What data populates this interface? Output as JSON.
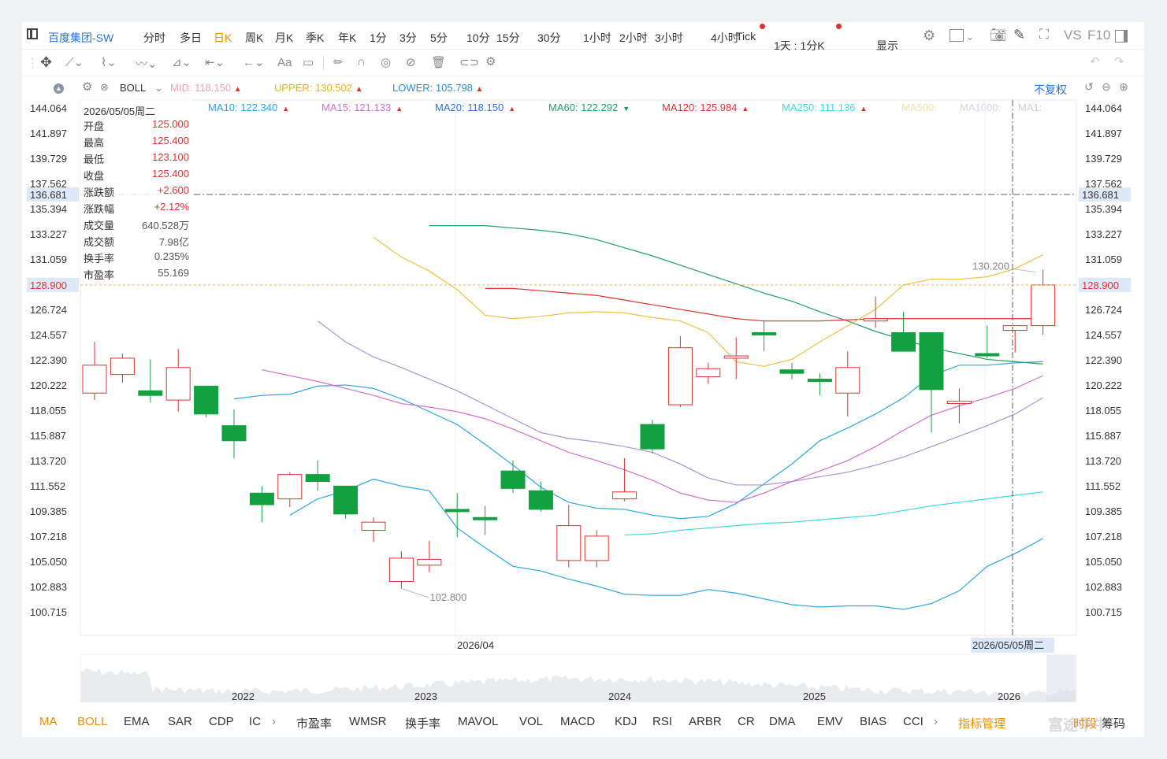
{
  "header": {
    "stock_name": "百度集团-SW",
    "periods": [
      "分时",
      "多日",
      "日K",
      "周K",
      "月K",
      "季K",
      "年K",
      "1分",
      "3分",
      "5分",
      "10分",
      "15分",
      "30分",
      "1小时",
      "2小时",
      "3小时",
      "4小时",
      "Tick"
    ],
    "active_period": "日K",
    "combo_label": "1天 : 1分K",
    "display_label": "显示",
    "vs_label": "VS",
    "f10_label": "F10"
  },
  "drawing_toolbar": {
    "text_tool_label": "Aa"
  },
  "boll": {
    "name": "BOLL",
    "mid_label": "MID:",
    "mid_value": "118.150",
    "upper_label": "UPPER:",
    "upper_value": "130.502",
    "lower_label": "LOWER:",
    "lower_value": "105.798",
    "adjust_label": "不复权"
  },
  "ma_legend": [
    {
      "label": "MA10:",
      "value": "122.340",
      "color": "#2aa7e0",
      "arrow": "▲",
      "arrow_color": "#e03030"
    },
    {
      "label": "MA15:",
      "value": "121.133",
      "color": "#d070d0",
      "arrow": "▲",
      "arrow_color": "#e03030"
    },
    {
      "label": "MA20:",
      "value": "118.150",
      "color": "#2a73d9",
      "arrow": "▲",
      "arrow_color": "#e03030"
    },
    {
      "label": "MA60:",
      "value": "122.292",
      "color": "#20a060",
      "arrow": "▼",
      "arrow_color": "#12a040"
    },
    {
      "label": "MA120:",
      "value": "125.984",
      "color": "#e03030",
      "arrow": "▲",
      "arrow_color": "#e03030"
    },
    {
      "label": "MA250:",
      "value": "111.136",
      "color": "#40d8e0",
      "arrow": "▲",
      "arrow_color": "#e03030"
    },
    {
      "label": "MA500:",
      "value": "",
      "color": "#f5dfa8",
      "arrow": "",
      "arrow_color": "#e03030"
    },
    {
      "label": "MA1000:",
      "value": "",
      "color": "#d8d0f0",
      "arrow": "",
      "arrow_color": "#e03030"
    },
    {
      "label": "MA1:",
      "value": "",
      "color": "#d0d0d0",
      "arrow": "",
      "arrow_color": "#e03030"
    }
  ],
  "info_panel": {
    "date": "2026/05/05周二",
    "rows": [
      {
        "k": "开盘",
        "v": "125.000",
        "color": "#e03030"
      },
      {
        "k": "最高",
        "v": "125.400",
        "color": "#e03030"
      },
      {
        "k": "最低",
        "v": "123.100",
        "color": "#e03030"
      },
      {
        "k": "收盘",
        "v": "125.400",
        "color": "#e03030"
      },
      {
        "k": "涨跌额",
        "v": "+2.600",
        "color": "#e03030"
      },
      {
        "k": "涨跌幅",
        "v": "+2.12%",
        "color": "#e03030"
      },
      {
        "k": "成交量",
        "v": "640.528万",
        "color": "#555"
      },
      {
        "k": "成交额",
        "v": "7.98亿",
        "color": "#555"
      },
      {
        "k": "换手率",
        "v": "0.235%",
        "color": "#555"
      },
      {
        "k": "市盈率",
        "v": "55.169",
        "color": "#555"
      }
    ]
  },
  "price_axis": {
    "ticks": [
      "144.064",
      "141.897",
      "139.729",
      "137.562",
      "135.394",
      "133.227",
      "131.059",
      "126.724",
      "124.557",
      "122.390",
      "120.222",
      "118.055",
      "115.887",
      "113.720",
      "111.552",
      "109.385",
      "107.218",
      "105.050",
      "102.883",
      "100.715"
    ],
    "highlight_crosshair": "136.681",
    "highlight_last": "128.900"
  },
  "annotations": {
    "high_label": "130.200",
    "low_label": "102.800"
  },
  "time_axis": {
    "main_label": "2026/04",
    "cursor_label": "2026/05/05周二"
  },
  "overview": {
    "year_labels": [
      "2022",
      "2023",
      "2024",
      "2025",
      "2026"
    ]
  },
  "indicator_tabs": [
    "MA",
    "BOLL",
    "EMA",
    "SAR",
    "CDP",
    "IC",
    "市盈率",
    "WMSR",
    "换手率",
    "MAVOL",
    "VOL",
    "MACD",
    "KDJ",
    "RSI",
    "ARBR",
    "CR",
    "DMA",
    "EMV",
    "BIAS",
    "CCI"
  ],
  "indicator_manage_label": "指标管理",
  "bottom_right": {
    "timeshare_label": "时段",
    "chips_label": "筹码",
    "watermark": "富途牛牛"
  },
  "colors": {
    "up": "#e03030",
    "down": "#12a040",
    "accent": "#f08c00",
    "link": "#2a73d9"
  },
  "chart_data": {
    "type": "candlestick",
    "ylim": [
      99.0,
      146.0
    ],
    "candles": [
      {
        "o": 119.6,
        "h": 124.0,
        "l": 119.0,
        "c": 122.0
      },
      {
        "o": 121.2,
        "h": 123.0,
        "l": 120.5,
        "c": 122.6
      },
      {
        "o": 119.8,
        "h": 122.5,
        "l": 118.8,
        "c": 119.4
      },
      {
        "o": 119.0,
        "h": 123.4,
        "l": 118.0,
        "c": 121.8
      },
      {
        "o": 120.2,
        "h": 120.2,
        "l": 117.5,
        "c": 117.8
      },
      {
        "o": 116.8,
        "h": 118.2,
        "l": 114.0,
        "c": 115.5
      },
      {
        "o": 111.0,
        "h": 111.6,
        "l": 108.5,
        "c": 110.0
      },
      {
        "o": 110.5,
        "h": 112.8,
        "l": 109.8,
        "c": 112.6
      },
      {
        "o": 112.6,
        "h": 113.8,
        "l": 111.2,
        "c": 112.0
      },
      {
        "o": 111.6,
        "h": 111.6,
        "l": 108.8,
        "c": 109.2
      },
      {
        "o": 107.8,
        "h": 108.9,
        "l": 106.8,
        "c": 108.5
      },
      {
        "o": 103.4,
        "h": 106.0,
        "l": 102.8,
        "c": 105.4
      },
      {
        "o": 104.8,
        "h": 106.9,
        "l": 104.2,
        "c": 105.3
      },
      {
        "o": 109.6,
        "h": 111.0,
        "l": 107.2,
        "c": 109.4
      },
      {
        "o": 108.9,
        "h": 109.9,
        "l": 107.4,
        "c": 108.7
      },
      {
        "o": 112.9,
        "h": 113.8,
        "l": 111.0,
        "c": 111.4
      },
      {
        "o": 111.2,
        "h": 112.0,
        "l": 109.4,
        "c": 109.6
      },
      {
        "o": 105.2,
        "h": 110.0,
        "l": 104.6,
        "c": 108.2
      },
      {
        "o": 105.2,
        "h": 107.8,
        "l": 104.6,
        "c": 107.3
      },
      {
        "o": 110.5,
        "h": 114.0,
        "l": 110.3,
        "c": 111.1
      },
      {
        "o": 116.9,
        "h": 117.3,
        "l": 114.4,
        "c": 114.8
      },
      {
        "o": 118.6,
        "h": 124.5,
        "l": 118.4,
        "c": 123.5
      },
      {
        "o": 121.0,
        "h": 122.2,
        "l": 120.4,
        "c": 121.7
      },
      {
        "o": 122.6,
        "h": 124.4,
        "l": 120.8,
        "c": 122.8
      },
      {
        "o": 124.8,
        "h": 125.8,
        "l": 123.2,
        "c": 124.6
      },
      {
        "o": 121.6,
        "h": 122.2,
        "l": 120.8,
        "c": 121.3
      },
      {
        "o": 120.8,
        "h": 121.3,
        "l": 119.4,
        "c": 120.6
      },
      {
        "o": 119.6,
        "h": 123.2,
        "l": 117.6,
        "c": 121.8
      },
      {
        "o": 125.8,
        "h": 127.9,
        "l": 125.2,
        "c": 126.0
      },
      {
        "o": 124.8,
        "h": 126.6,
        "l": 123.2,
        "c": 123.2
      },
      {
        "o": 124.8,
        "h": 124.8,
        "l": 116.2,
        "c": 119.9
      },
      {
        "o": 118.7,
        "h": 120.0,
        "l": 117.0,
        "c": 118.9
      },
      {
        "o": 123.0,
        "h": 125.4,
        "l": 122.6,
        "c": 122.8
      },
      {
        "o": 125.0,
        "h": 125.4,
        "l": 123.1,
        "c": 125.4
      },
      {
        "o": 125.4,
        "h": 130.2,
        "l": 124.6,
        "c": 128.9
      }
    ],
    "series": [
      {
        "name": "MA10",
        "color": "#2aa7e0",
        "values": [
          119.1,
          119.4,
          119.5,
          120.2,
          120.3,
          120.0,
          119.1,
          118.0,
          116.9,
          115.2,
          113.4,
          111.5,
          110.2,
          109.7,
          109.6,
          109.1,
          108.8,
          109.0,
          110.1,
          111.8,
          113.5,
          115.5,
          116.6,
          117.8,
          119.2,
          121.1,
          122.0,
          122.0,
          122.2,
          122.3
        ]
      },
      {
        "name": "MA15",
        "color": "#d070d0",
        "values": [
          121.6,
          121.1,
          120.6,
          120.0,
          119.4,
          118.7,
          118.4,
          118.0,
          117.4,
          116.5,
          115.5,
          114.5,
          113.8,
          113.0,
          112.1,
          111.0,
          110.4,
          110.2,
          111.0,
          112.0,
          112.9,
          113.8,
          115.0,
          116.4,
          117.7,
          118.5,
          119.2,
          120.0,
          121.1
        ]
      },
      {
        "name": "MA20",
        "color": "#b090d0",
        "values": [
          125.8,
          124.0,
          122.7,
          121.8,
          120.8,
          119.8,
          118.6,
          117.4,
          116.2,
          115.7,
          115.4,
          115.0,
          114.5,
          113.5,
          112.3,
          111.7,
          111.7,
          112.0,
          112.4,
          112.8,
          113.4,
          114.1,
          115.0,
          115.9,
          116.8,
          117.8,
          119.2
        ]
      },
      {
        "name": "MA60",
        "color": "#20a060",
        "values": [
          134.0,
          134.0,
          134.0,
          133.8,
          133.6,
          133.3,
          132.8,
          132.1,
          131.4,
          130.6,
          129.8,
          129.0,
          128.2,
          127.5,
          126.6,
          125.8,
          124.9,
          124.2,
          123.5,
          123.0,
          122.5,
          122.3,
          122.1
        ]
      },
      {
        "name": "MA120",
        "color": "#e03030",
        "values": [
          128.6,
          128.6,
          128.4,
          128.2,
          128.0,
          127.6,
          127.2,
          126.8,
          126.4,
          126.0,
          125.8,
          125.8,
          125.8,
          125.9,
          126.0,
          126.0,
          126.0,
          126.0,
          126.0,
          126.0,
          126.0
        ]
      },
      {
        "name": "MA250",
        "color": "#40d8e0",
        "values": [
          107.4,
          107.5,
          107.8,
          108.0,
          108.2,
          108.4,
          108.5,
          108.7,
          108.9,
          109.1,
          109.5,
          109.9,
          110.2,
          110.5,
          110.8,
          111.1
        ]
      },
      {
        "name": "UPPER",
        "color": "#f0c040",
        "values": [
          133.0,
          131.3,
          130.1,
          128.5,
          126.3,
          126.0,
          126.2,
          126.5,
          126.6,
          126.5,
          126.1,
          125.8,
          124.8,
          122.3,
          121.9,
          122.5,
          124.0,
          125.4,
          126.8,
          128.9,
          129.4,
          129.4,
          129.6,
          130.3,
          131.5
        ]
      },
      {
        "name": "LOWER",
        "color": "#2aa7e0",
        "values": [
          109.1,
          110.5,
          111.2,
          112.2,
          111.6,
          111.2,
          108.0,
          106.3,
          104.7,
          104.3,
          103.6,
          103.0,
          102.3,
          102.2,
          102.2,
          102.7,
          102.4,
          101.9,
          101.4,
          101.2,
          101.3,
          101.3,
          101.0,
          101.5,
          102.6,
          104.7,
          105.8,
          107.1
        ]
      }
    ]
  }
}
